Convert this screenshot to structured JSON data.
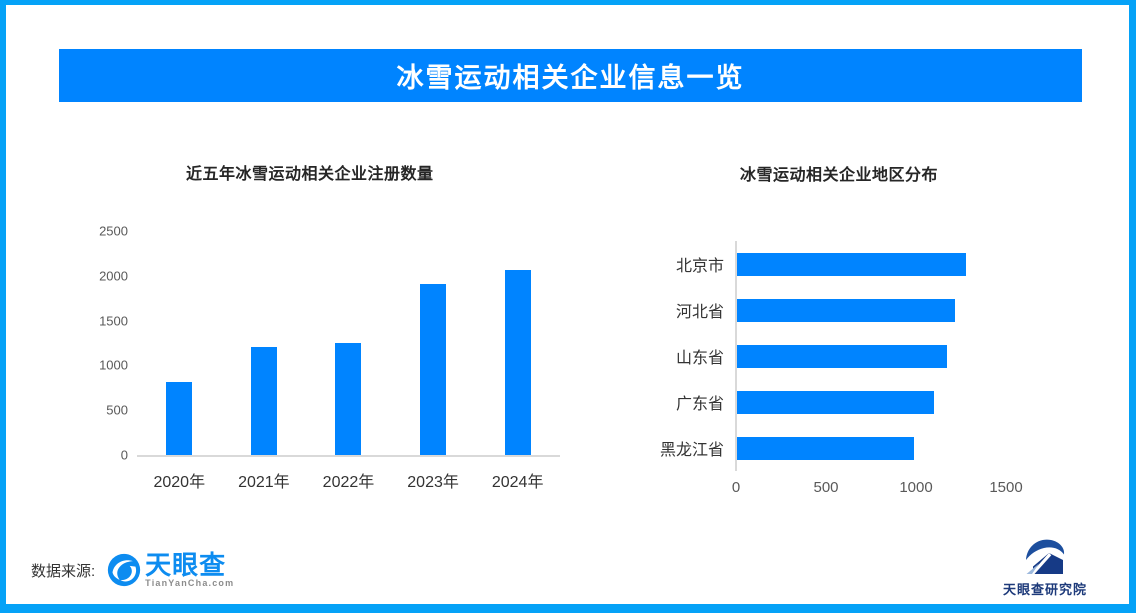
{
  "page": {
    "frame_color": "#05a2f7",
    "background": "#ffffff",
    "accent_blue": "#0084ff"
  },
  "header": {
    "title": "冰雪运动相关企业信息一览",
    "background": "#0084ff",
    "text_color": "#ffffff"
  },
  "chart_data": [
    {
      "type": "bar",
      "orientation": "vertical",
      "title": "近五年冰雪运动相关企业注册数量",
      "categories": [
        "2020年",
        "2021年",
        "2022年",
        "2023年",
        "2024年"
      ],
      "values": [
        820,
        1210,
        1250,
        1910,
        2060
      ],
      "xlabel": "",
      "ylabel": "",
      "ylim": [
        0,
        2500
      ],
      "yticks": [
        0,
        500,
        1000,
        1500,
        2000,
        2500
      ],
      "bar_color": "#0084ff",
      "axis_color": "#d9d9d9",
      "grid": false,
      "legend": "none"
    },
    {
      "type": "bar",
      "orientation": "horizontal",
      "title": "冰雪运动相关企业地区分布",
      "categories": [
        "北京市",
        "河北省",
        "山东省",
        "广东省",
        "黑龙江省"
      ],
      "values": [
        1270,
        1210,
        1165,
        1095,
        985
      ],
      "xlabel": "",
      "ylabel": "",
      "xlim": [
        0,
        1800
      ],
      "xticks": [
        0,
        500,
        1000,
        1500
      ],
      "bar_color": "#0084ff",
      "axis_color": "#d9d9d9",
      "grid": false,
      "legend": "none"
    }
  ],
  "footer": {
    "source_label": "数据来源:",
    "tianyancha": {
      "name": "天眼查",
      "domain": "TianYanCha.com",
      "icon": "tianyancha-eye-icon",
      "brand_color": "#0d8cf0"
    },
    "institute": {
      "name": "天眼查研究院",
      "icon": "tianyancha-institute-icon",
      "brand_color": "#1d3a7a"
    }
  }
}
